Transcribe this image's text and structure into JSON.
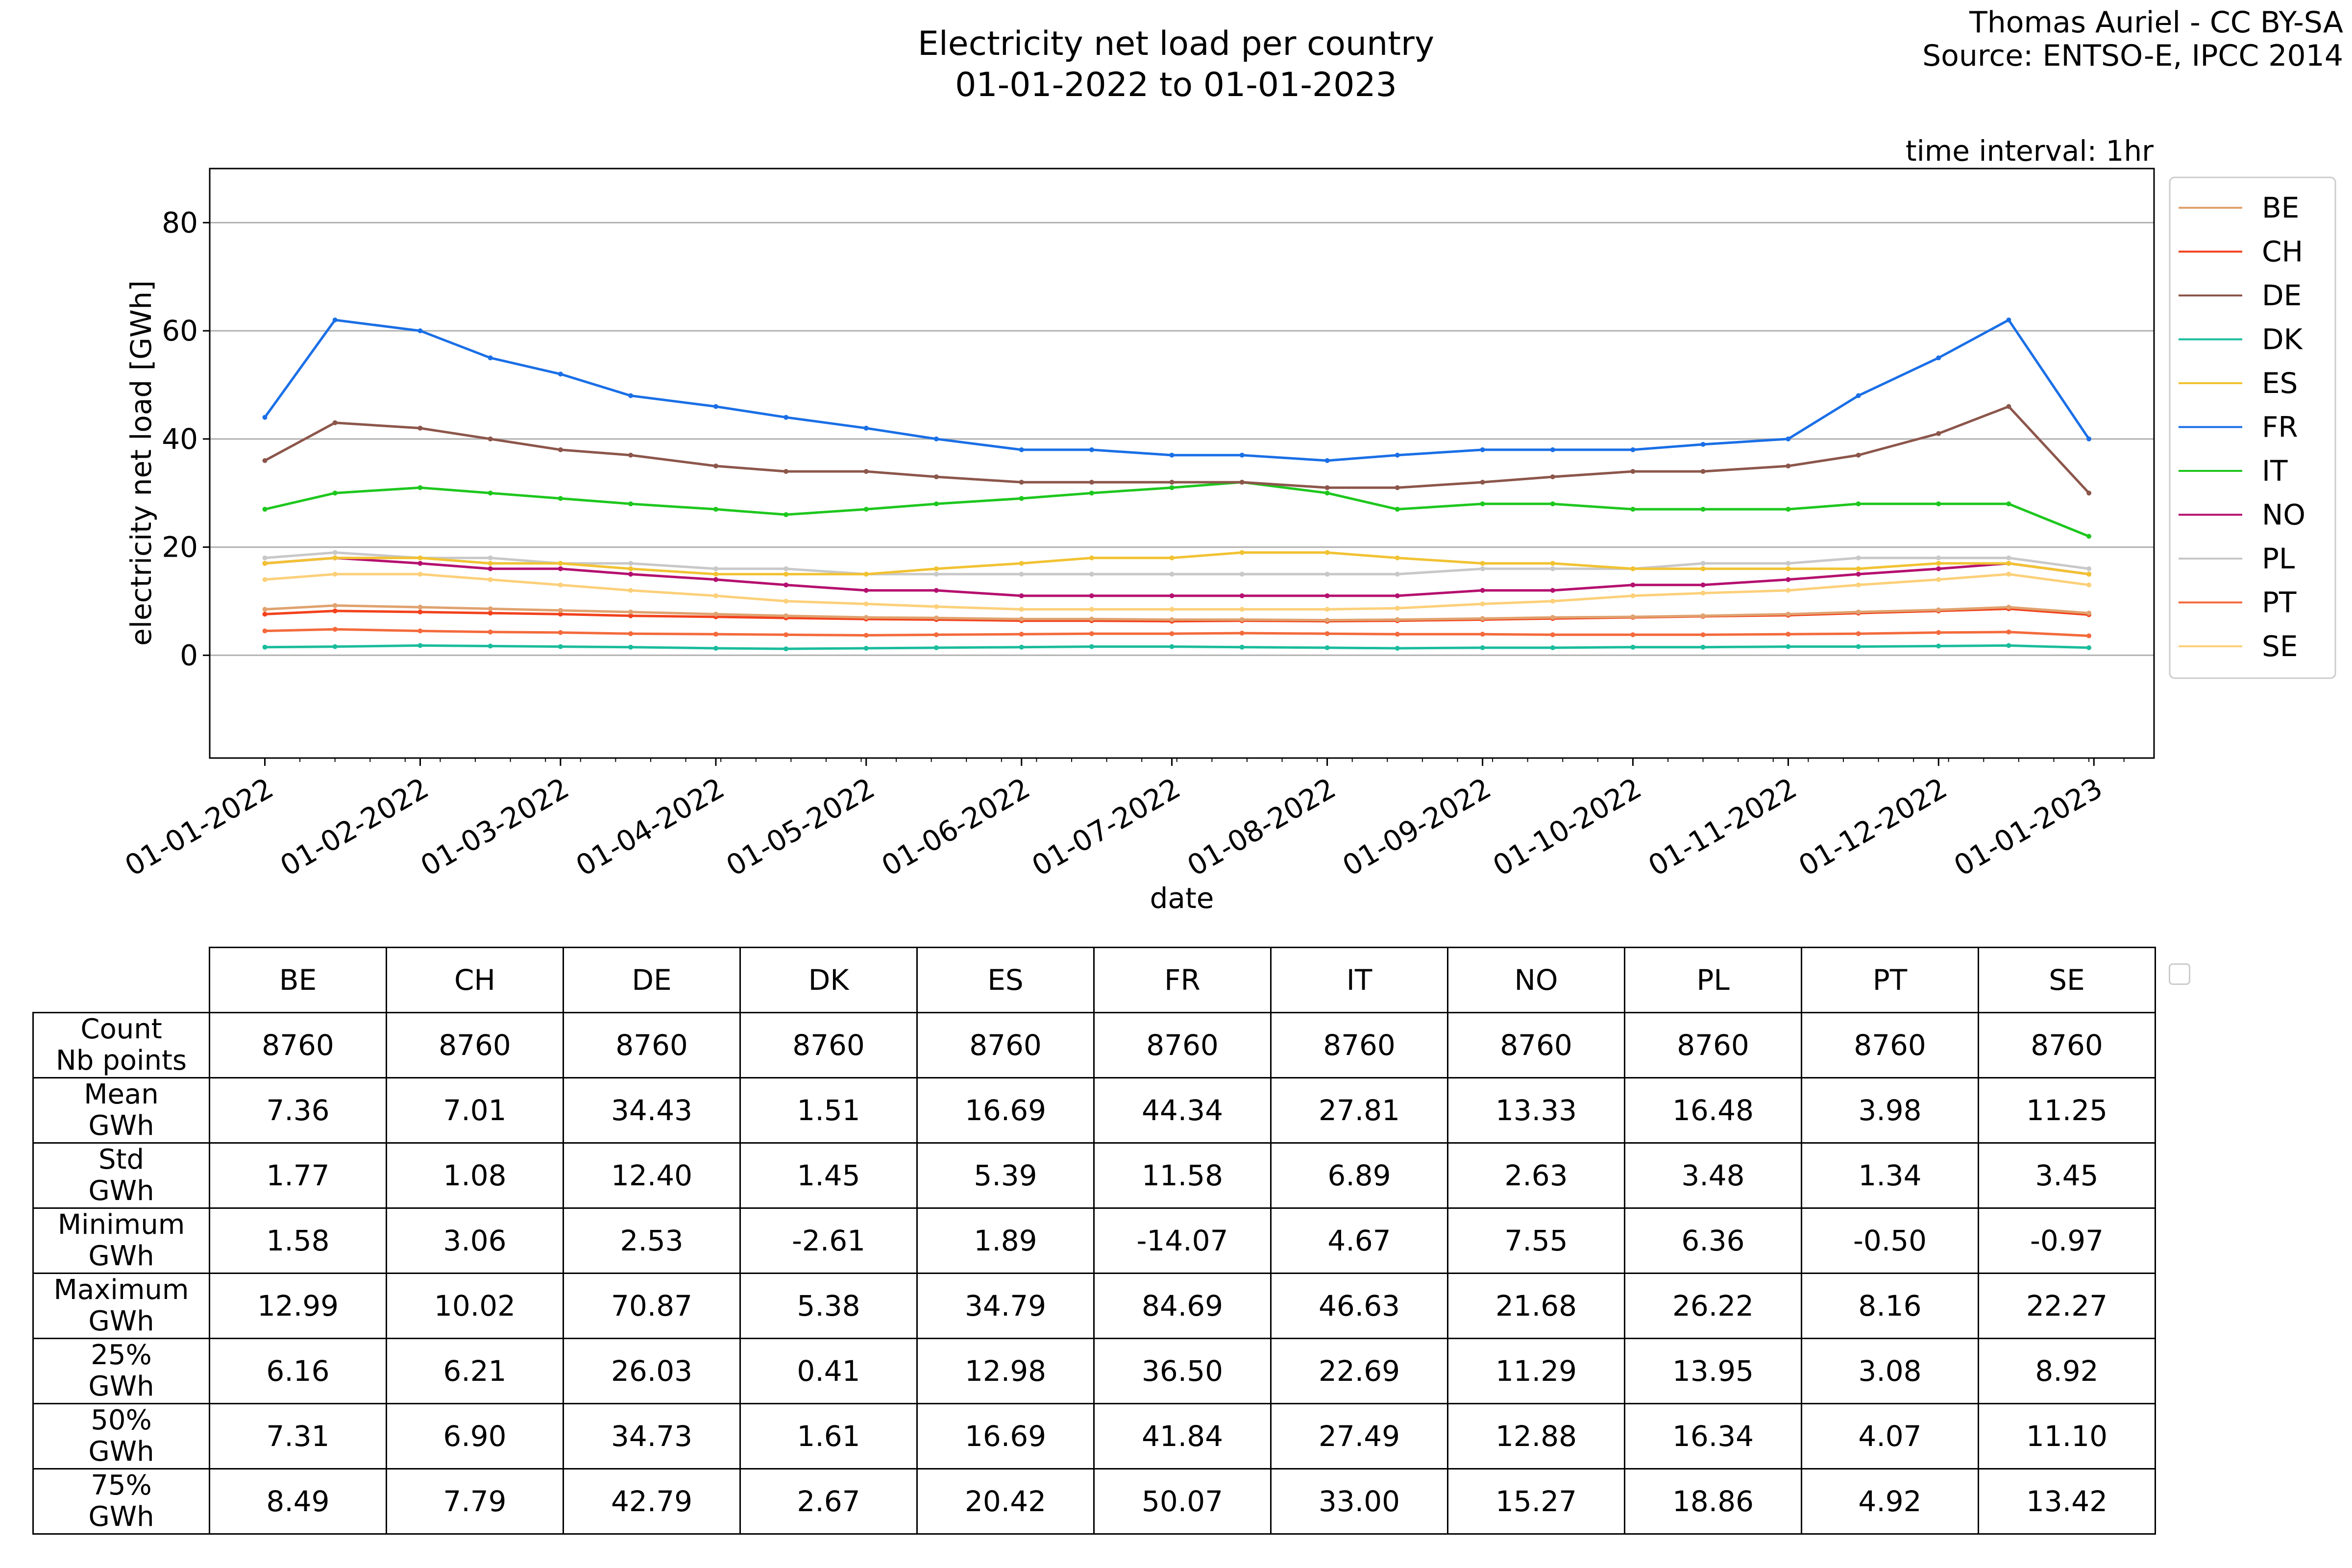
{
  "title_line1": "Electricity net load per country",
  "title_line2": "01-01-2022 to 01-01-2023",
  "credit_line1": "Thomas Auriel - CC BY-SA",
  "credit_line2": "Source: ENTSO-E, IPCC 2014",
  "interval_label": "time interval: 1hr",
  "chart_data": {
    "type": "line",
    "xlabel": "date",
    "ylabel": "electricity net load [GWh]",
    "ylim": [
      -19,
      90
    ],
    "yticks": [
      0,
      20,
      40,
      60,
      80
    ],
    "grid": "horizontal",
    "legend_position": "right",
    "xlim": [
      "2021-12-21",
      "2023-01-13"
    ],
    "xticks": [
      "01-01-2022",
      "01-02-2022",
      "01-03-2022",
      "01-04-2022",
      "01-05-2022",
      "01-06-2022",
      "01-07-2022",
      "01-08-2022",
      "01-09-2022",
      "01-10-2022",
      "01-11-2022",
      "01-12-2022",
      "01-01-2023"
    ],
    "xtick_dates": [
      "2022-01-01",
      "2022-02-01",
      "2022-03-01",
      "2022-04-01",
      "2022-05-01",
      "2022-06-01",
      "2022-07-01",
      "2022-08-01",
      "2022-09-01",
      "2022-10-01",
      "2022-11-01",
      "2022-12-01",
      "2023-01-01"
    ],
    "x": [
      "2022-01-01",
      "2022-01-15",
      "2022-02-01",
      "2022-02-15",
      "2022-03-01",
      "2022-03-15",
      "2022-04-01",
      "2022-04-15",
      "2022-05-01",
      "2022-05-15",
      "2022-06-01",
      "2022-06-15",
      "2022-07-01",
      "2022-07-15",
      "2022-08-01",
      "2022-08-15",
      "2022-09-01",
      "2022-09-15",
      "2022-10-01",
      "2022-10-15",
      "2022-11-01",
      "2022-11-15",
      "2022-12-01",
      "2022-12-15",
      "2022-12-31"
    ],
    "series": [
      {
        "name": "BE",
        "color": "#e0a26f",
        "values": [
          8.5,
          9.2,
          8.9,
          8.6,
          8.3,
          8.0,
          7.6,
          7.3,
          7.0,
          6.9,
          6.7,
          6.7,
          6.6,
          6.6,
          6.5,
          6.6,
          6.8,
          7.0,
          7.1,
          7.3,
          7.6,
          8.0,
          8.4,
          8.9,
          7.8
        ]
      },
      {
        "name": "CH",
        "color": "#f2421d",
        "values": [
          7.6,
          8.2,
          8.0,
          7.8,
          7.6,
          7.3,
          7.1,
          6.9,
          6.7,
          6.6,
          6.4,
          6.4,
          6.3,
          6.4,
          6.3,
          6.4,
          6.6,
          6.8,
          7.0,
          7.2,
          7.4,
          7.8,
          8.2,
          8.6,
          7.5
        ]
      },
      {
        "name": "DE",
        "color": "#8c564b",
        "values": [
          36,
          43,
          42,
          40,
          38,
          37,
          35,
          34,
          34,
          33,
          32,
          32,
          32,
          32,
          31,
          31,
          32,
          33,
          34,
          34,
          35,
          37,
          41,
          46,
          30
        ]
      },
      {
        "name": "DK",
        "color": "#1abc9c",
        "values": [
          1.5,
          1.6,
          1.8,
          1.7,
          1.6,
          1.5,
          1.3,
          1.2,
          1.3,
          1.4,
          1.5,
          1.6,
          1.6,
          1.5,
          1.4,
          1.3,
          1.4,
          1.4,
          1.5,
          1.5,
          1.6,
          1.6,
          1.7,
          1.8,
          1.4
        ]
      },
      {
        "name": "ES",
        "color": "#f1c232",
        "values": [
          17,
          18,
          18,
          17,
          17,
          16,
          15,
          15,
          15,
          16,
          17,
          18,
          18,
          19,
          19,
          18,
          17,
          17,
          16,
          16,
          16,
          16,
          17,
          17,
          15
        ]
      },
      {
        "name": "FR",
        "color": "#1a6fe6",
        "values": [
          44,
          62,
          60,
          55,
          52,
          48,
          46,
          44,
          42,
          40,
          38,
          38,
          37,
          37,
          36,
          37,
          38,
          38,
          38,
          39,
          40,
          48,
          55,
          62,
          40
        ]
      },
      {
        "name": "IT",
        "color": "#1ec71e",
        "values": [
          27,
          30,
          31,
          30,
          29,
          28,
          27,
          26,
          27,
          28,
          29,
          30,
          31,
          32,
          30,
          27,
          28,
          28,
          27,
          27,
          27,
          28,
          28,
          28,
          22
        ]
      },
      {
        "name": "NO",
        "color": "#b5106f",
        "values": [
          17,
          18,
          17,
          16,
          16,
          15,
          14,
          13,
          12,
          12,
          11,
          11,
          11,
          11,
          11,
          11,
          12,
          12,
          13,
          13,
          14,
          15,
          16,
          17,
          15
        ]
      },
      {
        "name": "PL",
        "color": "#c8c8c8",
        "values": [
          18,
          19,
          18,
          18,
          17,
          17,
          16,
          16,
          15,
          15,
          15,
          15,
          15,
          15,
          15,
          15,
          16,
          16,
          16,
          17,
          17,
          18,
          18,
          18,
          16
        ]
      },
      {
        "name": "PT",
        "color": "#f46a3c",
        "values": [
          4.5,
          4.8,
          4.5,
          4.3,
          4.2,
          4.0,
          3.9,
          3.8,
          3.7,
          3.8,
          3.9,
          4.0,
          4.0,
          4.1,
          4.0,
          3.9,
          3.9,
          3.8,
          3.8,
          3.8,
          3.9,
          4.0,
          4.2,
          4.3,
          3.6
        ]
      },
      {
        "name": "SE",
        "color": "#fcd07a",
        "values": [
          14,
          15,
          15,
          14,
          13,
          12,
          11,
          10,
          9.5,
          9,
          8.5,
          8.5,
          8.5,
          8.5,
          8.5,
          8.7,
          9.5,
          10,
          11,
          11.5,
          12,
          13,
          14,
          15,
          13
        ]
      }
    ]
  },
  "table": {
    "columns": [
      "BE",
      "CH",
      "DE",
      "DK",
      "ES",
      "FR",
      "IT",
      "NO",
      "PL",
      "PT",
      "SE"
    ],
    "rows": [
      {
        "label1": "Count",
        "label2": "Nb points",
        "values": [
          "8760",
          "8760",
          "8760",
          "8760",
          "8760",
          "8760",
          "8760",
          "8760",
          "8760",
          "8760",
          "8760"
        ]
      },
      {
        "label1": "Mean",
        "label2": "GWh",
        "values": [
          "7.36",
          "7.01",
          "34.43",
          "1.51",
          "16.69",
          "44.34",
          "27.81",
          "13.33",
          "16.48",
          "3.98",
          "11.25"
        ]
      },
      {
        "label1": "Std",
        "label2": "GWh",
        "values": [
          "1.77",
          "1.08",
          "12.40",
          "1.45",
          "5.39",
          "11.58",
          "6.89",
          "2.63",
          "3.48",
          "1.34",
          "3.45"
        ]
      },
      {
        "label1": "Minimum",
        "label2": "GWh",
        "values": [
          "1.58",
          "3.06",
          "2.53",
          "-2.61",
          "1.89",
          "-14.07",
          "4.67",
          "7.55",
          "6.36",
          "-0.50",
          "-0.97"
        ]
      },
      {
        "label1": "Maximum",
        "label2": "GWh",
        "values": [
          "12.99",
          "10.02",
          "70.87",
          "5.38",
          "34.79",
          "84.69",
          "46.63",
          "21.68",
          "26.22",
          "8.16",
          "22.27"
        ]
      },
      {
        "label1": "25%",
        "label2": "GWh",
        "values": [
          "6.16",
          "6.21",
          "26.03",
          "0.41",
          "12.98",
          "36.50",
          "22.69",
          "11.29",
          "13.95",
          "3.08",
          "8.92"
        ]
      },
      {
        "label1": "50%",
        "label2": "GWh",
        "values": [
          "7.31",
          "6.90",
          "34.73",
          "1.61",
          "16.69",
          "41.84",
          "27.49",
          "12.88",
          "16.34",
          "4.07",
          "11.10"
        ]
      },
      {
        "label1": "75%",
        "label2": "GWh",
        "values": [
          "8.49",
          "7.79",
          "42.79",
          "2.67",
          "20.42",
          "50.07",
          "33.00",
          "15.27",
          "18.86",
          "4.92",
          "13.42"
        ]
      }
    ]
  }
}
